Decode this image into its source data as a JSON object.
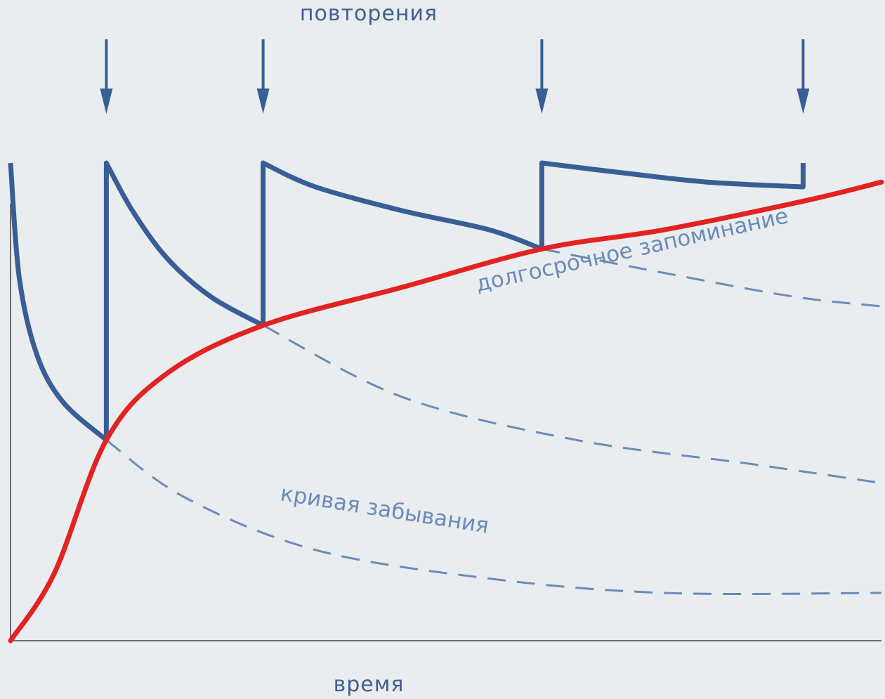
{
  "chart_data": {
    "type": "line",
    "top_label": "повторения",
    "xlabel": "время",
    "ylabel": "",
    "review_times": [
      0.11,
      0.29,
      0.61,
      0.91
    ],
    "series": [
      {
        "name": "долгосрочное запоминание",
        "kind": "long-term",
        "points": [
          [
            0,
            0
          ],
          [
            0.05,
            0.14
          ],
          [
            0.11,
            0.42
          ],
          [
            0.18,
            0.56
          ],
          [
            0.29,
            0.66
          ],
          [
            0.45,
            0.74
          ],
          [
            0.61,
            0.82
          ],
          [
            0.75,
            0.86
          ],
          [
            0.91,
            0.92
          ],
          [
            1,
            0.96
          ]
        ]
      },
      {
        "name": "кривая забывания",
        "kind": "forgetting",
        "points": [
          [
            0.11,
            0.42
          ],
          [
            0.2,
            0.3
          ],
          [
            0.35,
            0.19
          ],
          [
            0.55,
            0.13
          ],
          [
            0.75,
            0.1
          ],
          [
            1,
            0.1
          ]
        ]
      },
      {
        "name": "",
        "kind": "forgetting",
        "points": [
          [
            0.29,
            0.66
          ],
          [
            0.45,
            0.51
          ],
          [
            0.65,
            0.42
          ],
          [
            0.85,
            0.37
          ],
          [
            1,
            0.33
          ]
        ]
      },
      {
        "name": "",
        "kind": "forgetting",
        "points": [
          [
            0.61,
            0.82
          ],
          [
            0.75,
            0.77
          ],
          [
            0.9,
            0.72
          ],
          [
            1,
            0.7
          ]
        ]
      },
      {
        "name": "",
        "kind": "memory",
        "points": [
          [
            0,
            1
          ],
          [
            0.01,
            0.76
          ],
          [
            0.03,
            0.6
          ],
          [
            0.06,
            0.5
          ],
          [
            0.11,
            0.42
          ],
          [
            0.11,
            1
          ],
          [
            0.14,
            0.9
          ],
          [
            0.18,
            0.8
          ],
          [
            0.23,
            0.72
          ],
          [
            0.29,
            0.66
          ],
          [
            0.29,
            1
          ],
          [
            0.35,
            0.95
          ],
          [
            0.45,
            0.9
          ],
          [
            0.55,
            0.86
          ],
          [
            0.61,
            0.82
          ],
          [
            0.61,
            1
          ],
          [
            0.7,
            0.98
          ],
          [
            0.8,
            0.96
          ],
          [
            0.91,
            0.95
          ],
          [
            0.91,
            1
          ]
        ]
      }
    ],
    "annotations": [
      {
        "text": "долгосрочное запоминание",
        "series": 0
      },
      {
        "text": "кривая забывания",
        "series": 1
      }
    ],
    "colors": {
      "long_term": "#e32222",
      "memory": "#385e96",
      "forgetting": "#6a8bba",
      "axis": "#6b6b6b",
      "text": "#3f5f95"
    },
    "grid": false
  }
}
